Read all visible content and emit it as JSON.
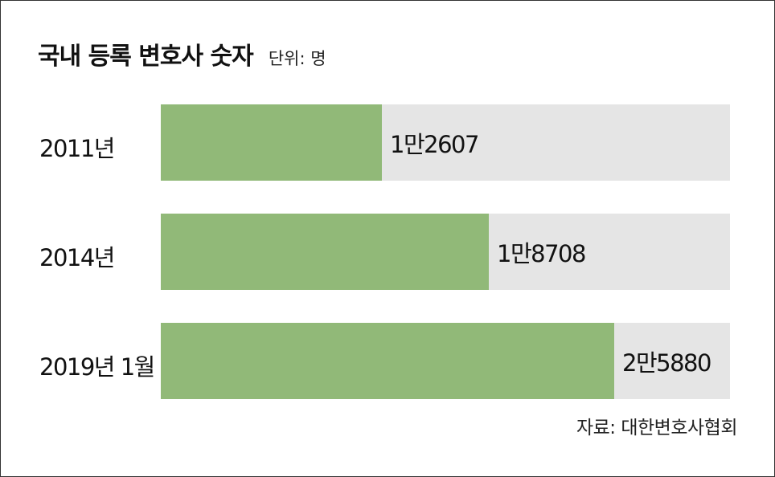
{
  "chart_data": {
    "type": "bar",
    "orientation": "horizontal",
    "title": "국내 등록 변호사 숫자",
    "unit_label": "단위: 명",
    "categories": [
      "2011년",
      "2014년",
      "2019년 1월"
    ],
    "values": [
      12607,
      18708,
      25880
    ],
    "value_labels": [
      "1만2607",
      "1만8708",
      "2만5880"
    ],
    "xlim": [
      0,
      32500
    ],
    "grid": false,
    "legend": "none",
    "source": "자료: 대한변호사협회",
    "colors": {
      "bar": "#91b978",
      "track": "#e5e5e5",
      "text": "#111111"
    }
  }
}
